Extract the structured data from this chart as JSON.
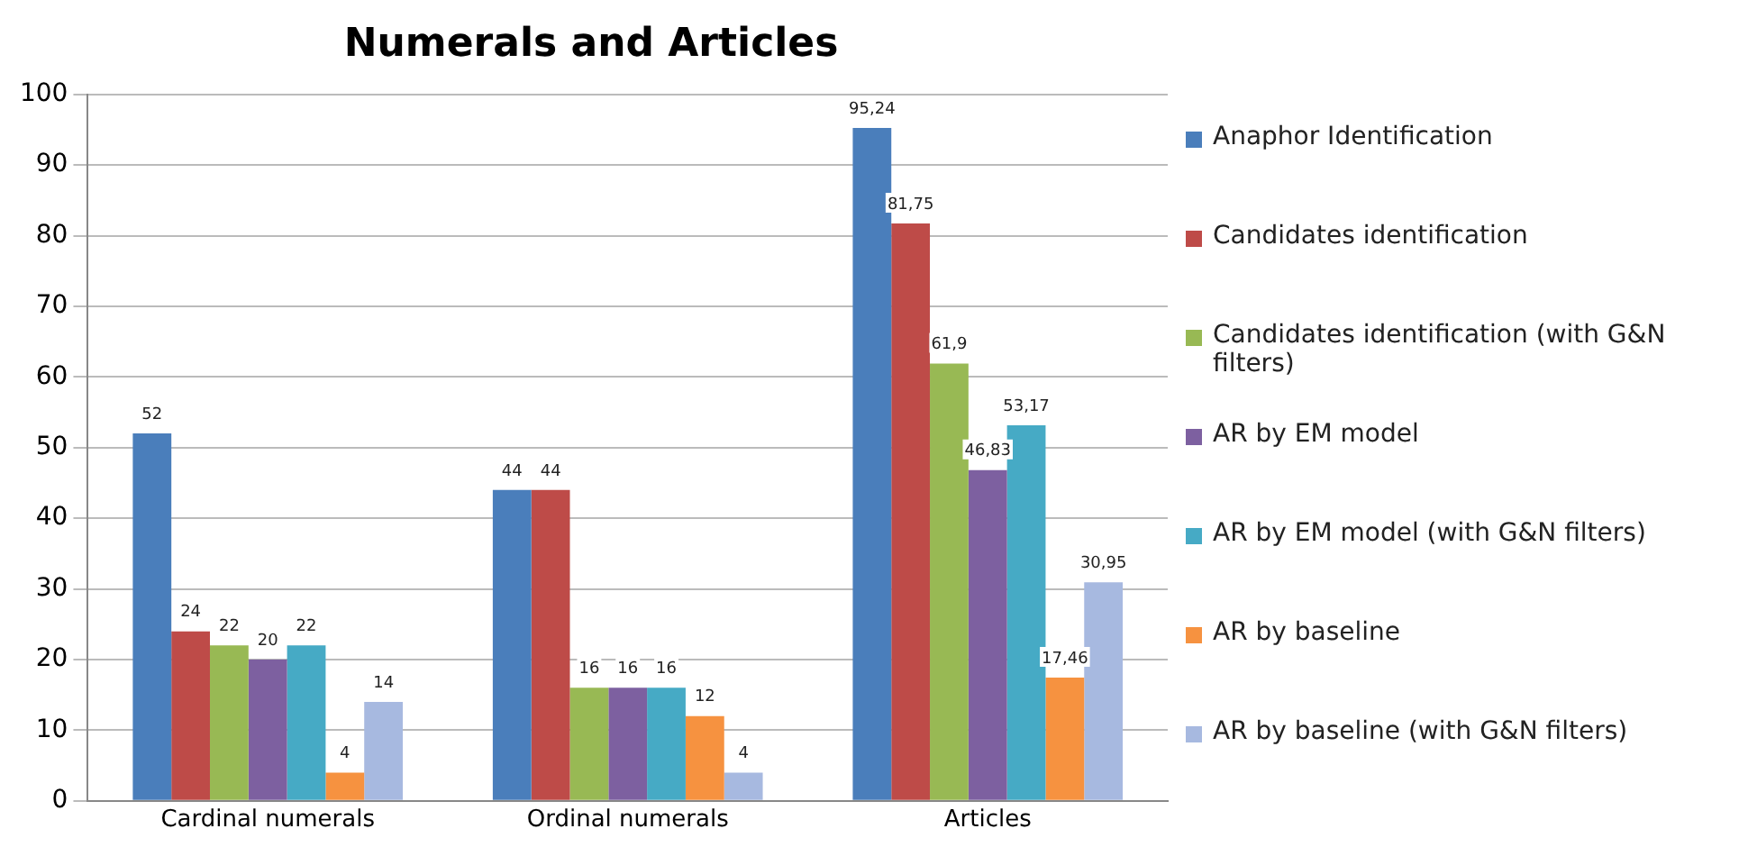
{
  "chart_data": {
    "type": "bar",
    "title": "Numerals and Articles",
    "categories": [
      "Cardinal numerals",
      "Ordinal numerals",
      "Articles"
    ],
    "series": [
      {
        "name": "Anaphor Identification",
        "color": "#4a7ebb",
        "values": [
          52,
          44,
          95.24
        ],
        "value_labels": [
          "52",
          "44",
          "95,24"
        ]
      },
      {
        "name": "Candidates identification",
        "color": "#be4b48",
        "values": [
          24,
          44,
          81.75
        ],
        "value_labels": [
          "24",
          "44",
          "81,75"
        ]
      },
      {
        "name": "Candidates identification (with G&N filters)",
        "color": "#98b954",
        "values": [
          22,
          16,
          61.9
        ],
        "value_labels": [
          "22",
          "16",
          "61,9"
        ]
      },
      {
        "name": "AR by EM model",
        "color": "#7d60a0",
        "values": [
          20,
          16,
          46.83
        ],
        "value_labels": [
          "20",
          "16",
          "46,83"
        ]
      },
      {
        "name": "AR by EM model (with G&N filters)",
        "color": "#46aac5",
        "values": [
          22,
          16,
          53.17
        ],
        "value_labels": [
          "22",
          "16",
          "53,17"
        ]
      },
      {
        "name": "AR by baseline",
        "color": "#f69240",
        "values": [
          4,
          12,
          17.46
        ],
        "value_labels": [
          "4",
          "12",
          "17,46"
        ]
      },
      {
        "name": "AR by baseline (with G&N filters)",
        "color": "#a7b9e0",
        "values": [
          14,
          4,
          30.95
        ],
        "value_labels": [
          "14",
          "4",
          "30,95"
        ]
      }
    ],
    "ylim": [
      0,
      100
    ],
    "yticks": [
      0,
      10,
      20,
      30,
      40,
      50,
      60,
      70,
      80,
      90,
      100
    ],
    "grid": "y",
    "legend": "right"
  }
}
